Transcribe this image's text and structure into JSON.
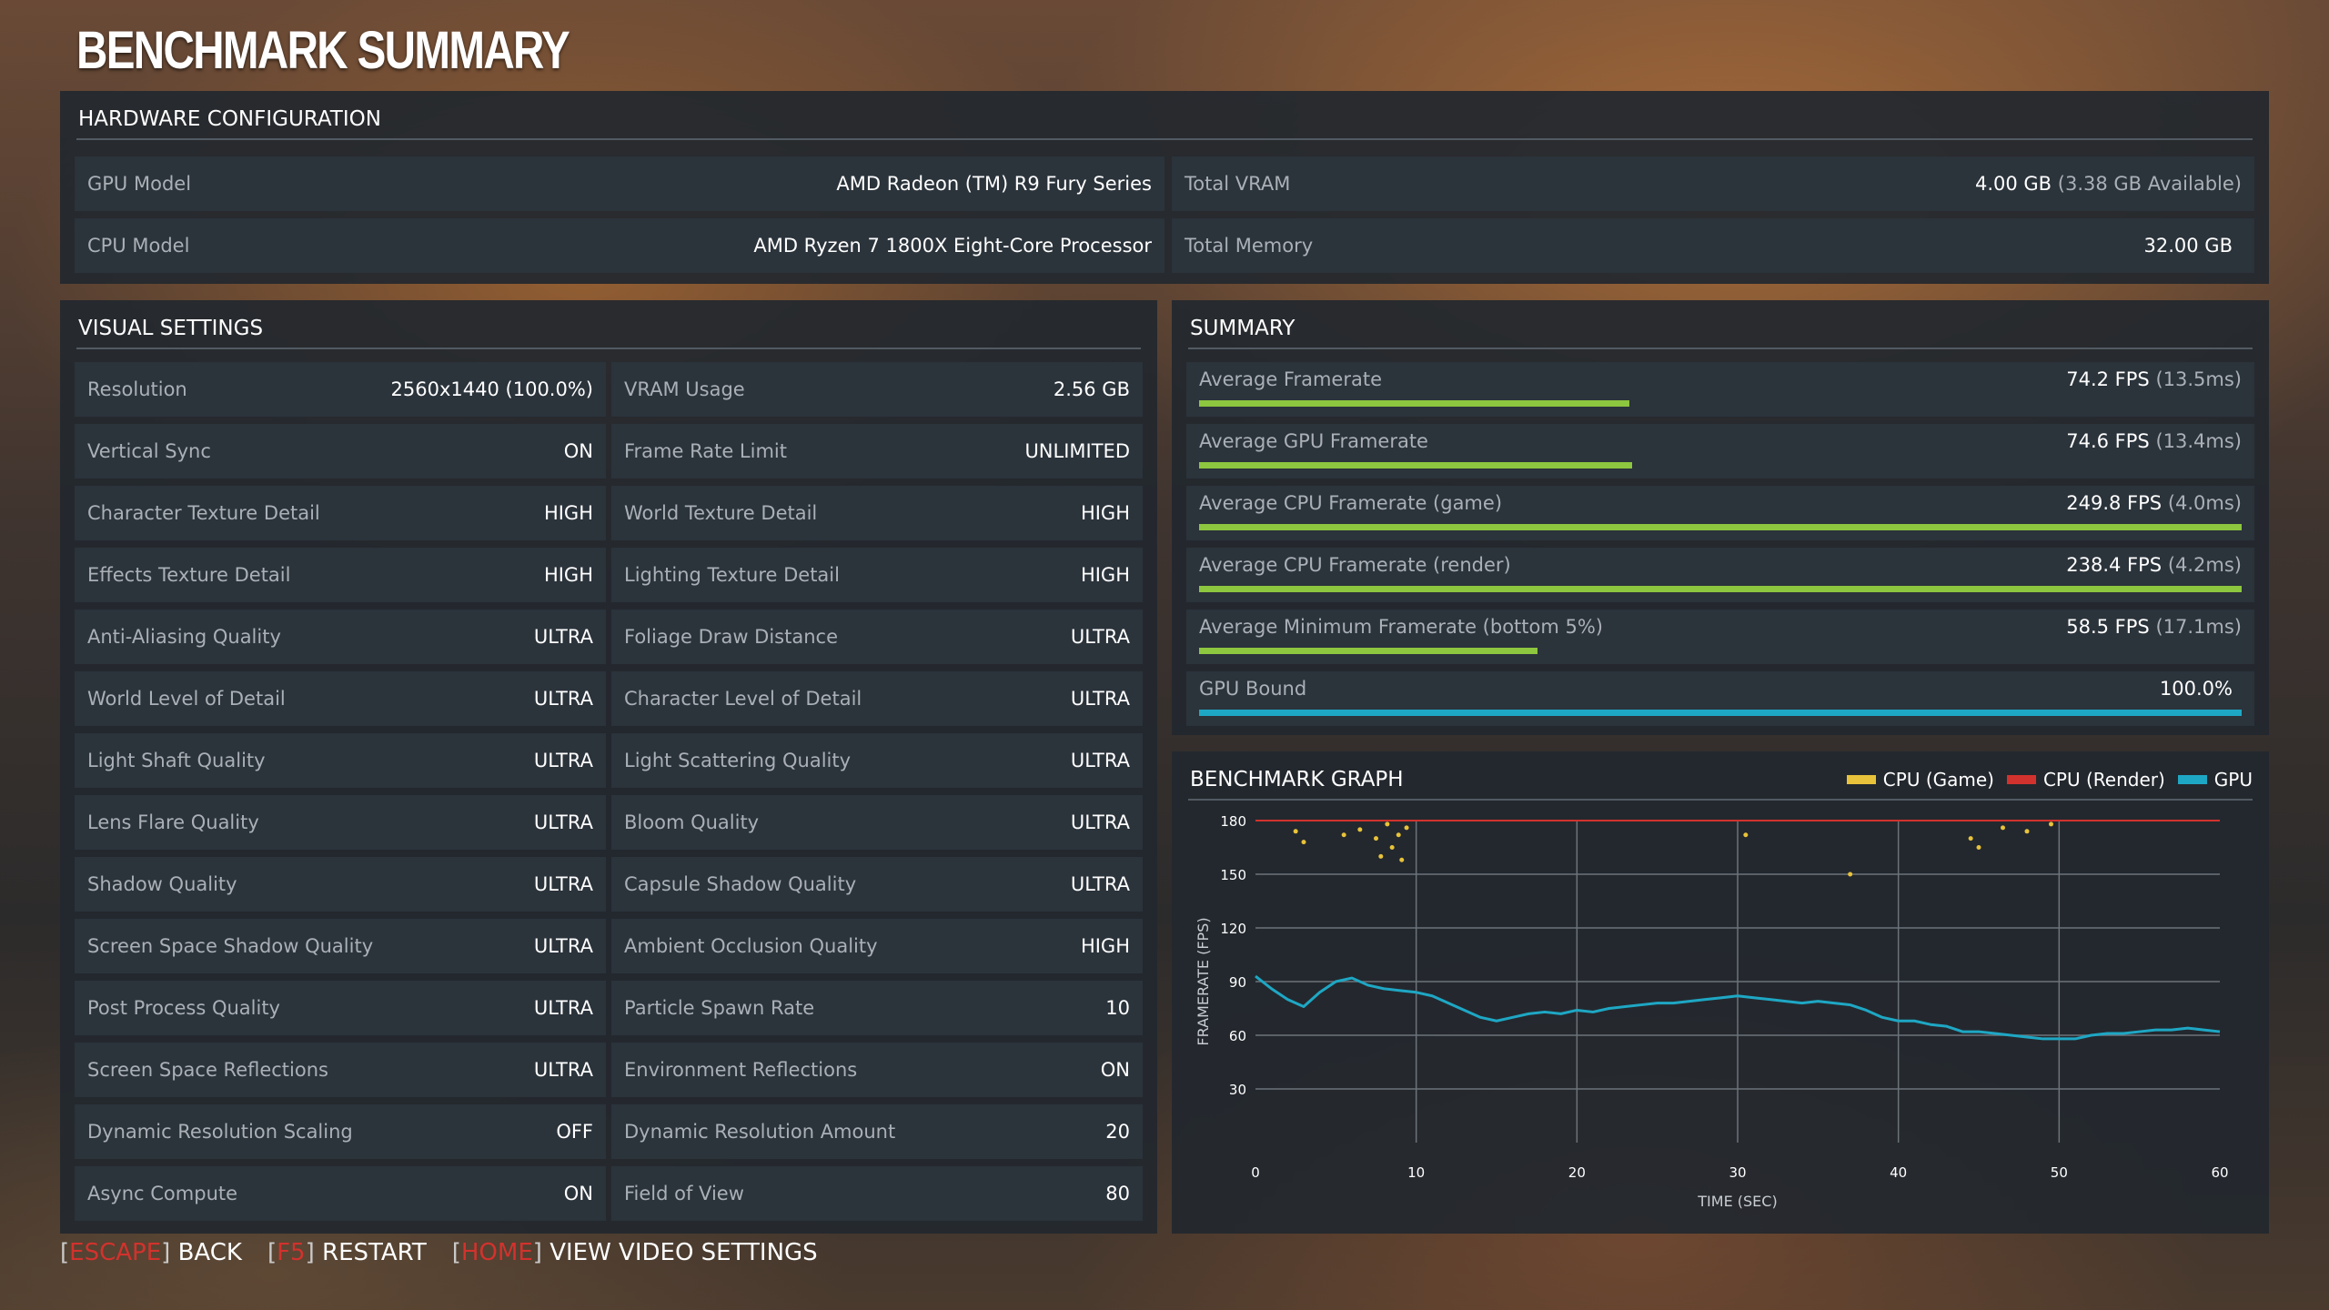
{
  "page_title": "BENCHMARK SUMMARY",
  "hardware": {
    "header": "HARDWARE CONFIGURATION",
    "gpu_label": "GPU Model",
    "gpu_value": "AMD Radeon (TM) R9 Fury Series",
    "cpu_label": "CPU Model",
    "cpu_value": "AMD Ryzen 7 1800X Eight-Core Processor",
    "vram_label": "Total VRAM",
    "vram_value": "4.00 GB",
    "vram_note": "(3.38 GB Available)",
    "memory_label": "Total Memory",
    "memory_value": "32.00 GB"
  },
  "visual_settings": {
    "header": "VISUAL SETTINGS",
    "left": [
      {
        "label": "Resolution",
        "value": "2560x1440 (100.0%)"
      },
      {
        "label": "Vertical Sync",
        "value": "ON"
      },
      {
        "label": "Character Texture Detail",
        "value": "HIGH"
      },
      {
        "label": "Effects Texture Detail",
        "value": "HIGH"
      },
      {
        "label": "Anti-Aliasing Quality",
        "value": "ULTRA"
      },
      {
        "label": "World Level of Detail",
        "value": "ULTRA"
      },
      {
        "label": "Light Shaft Quality",
        "value": "ULTRA"
      },
      {
        "label": "Lens Flare Quality",
        "value": "ULTRA"
      },
      {
        "label": "Shadow Quality",
        "value": "ULTRA"
      },
      {
        "label": "Screen Space Shadow Quality",
        "value": "ULTRA"
      },
      {
        "label": "Post Process Quality",
        "value": "ULTRA"
      },
      {
        "label": "Screen Space Reflections",
        "value": "ULTRA"
      },
      {
        "label": "Dynamic Resolution Scaling",
        "value": "OFF"
      },
      {
        "label": "Async Compute",
        "value": "ON"
      }
    ],
    "right": [
      {
        "label": "VRAM Usage",
        "value": "2.56 GB"
      },
      {
        "label": "Frame Rate Limit",
        "value": "UNLIMITED"
      },
      {
        "label": "World Texture Detail",
        "value": "HIGH"
      },
      {
        "label": "Lighting Texture Detail",
        "value": "HIGH"
      },
      {
        "label": "Foliage Draw Distance",
        "value": "ULTRA"
      },
      {
        "label": "Character Level of Detail",
        "value": "ULTRA"
      },
      {
        "label": "Light Scattering Quality",
        "value": "ULTRA"
      },
      {
        "label": "Bloom Quality",
        "value": "ULTRA"
      },
      {
        "label": "Capsule Shadow Quality",
        "value": "ULTRA"
      },
      {
        "label": "Ambient Occlusion Quality",
        "value": "HIGH"
      },
      {
        "label": "Particle Spawn Rate",
        "value": "10"
      },
      {
        "label": "Environment Reflections",
        "value": "ON"
      },
      {
        "label": "Dynamic Resolution Amount",
        "value": "20"
      },
      {
        "label": "Field of View",
        "value": "80"
      }
    ]
  },
  "summary": {
    "header": "SUMMARY",
    "stats": [
      {
        "label": "Average Framerate",
        "value": "74.2 FPS",
        "note": "(13.5ms)",
        "bar_fraction": 0.413,
        "bar_color": "#8dc63f"
      },
      {
        "label": "Average GPU Framerate",
        "value": "74.6 FPS",
        "note": "(13.4ms)",
        "bar_fraction": 0.415,
        "bar_color": "#8dc63f"
      },
      {
        "label": "Average CPU Framerate (game)",
        "value": "249.8 FPS",
        "note": "(4.0ms)",
        "bar_fraction": 1.0,
        "bar_color": "#8dc63f"
      },
      {
        "label": "Average CPU Framerate (render)",
        "value": "238.4 FPS",
        "note": "(4.2ms)",
        "bar_fraction": 1.0,
        "bar_color": "#8dc63f"
      },
      {
        "label": "Average Minimum Framerate (bottom 5%)",
        "value": "58.5 FPS",
        "note": "(17.1ms)",
        "bar_fraction": 0.325,
        "bar_color": "#8dc63f"
      },
      {
        "label": "GPU Bound",
        "value": "100.0%",
        "note": "",
        "bar_fraction": 1.0,
        "bar_color": "#1ea7c4"
      }
    ]
  },
  "graph": {
    "header": "BENCHMARK GRAPH",
    "legend": [
      {
        "label": "CPU (Game)",
        "color": "#e8c23a"
      },
      {
        "label": "CPU (Render)",
        "color": "#d2322d"
      },
      {
        "label": "GPU",
        "color": "#1ea7c4"
      }
    ]
  },
  "chart_data": {
    "type": "line",
    "xlabel": "TIME (SEC)",
    "ylabel": "FRAMERATE (FPS)",
    "xlim": [
      0,
      60
    ],
    "ylim": [
      0,
      180
    ],
    "x_ticks": [
      0,
      10,
      20,
      30,
      40,
      50,
      60
    ],
    "y_ticks": [
      30,
      60,
      90,
      120,
      150,
      180
    ],
    "grid": true,
    "series": [
      {
        "name": "GPU",
        "color": "#1ea7c4",
        "x": [
          0,
          1,
          2,
          3,
          4,
          5,
          6,
          7,
          8,
          9,
          10,
          11,
          12,
          13,
          14,
          15,
          16,
          17,
          18,
          19,
          20,
          21,
          22,
          23,
          24,
          25,
          26,
          27,
          28,
          29,
          30,
          31,
          32,
          33,
          34,
          35,
          36,
          37,
          38,
          39,
          40,
          41,
          42,
          43,
          44,
          45,
          46,
          47,
          48,
          49,
          50,
          51,
          52,
          53,
          54,
          55,
          56,
          57,
          58,
          59,
          60
        ],
        "y": [
          93,
          86,
          80,
          76,
          84,
          90,
          92,
          88,
          86,
          85,
          84,
          82,
          78,
          74,
          70,
          68,
          70,
          72,
          73,
          72,
          74,
          73,
          75,
          76,
          77,
          78,
          78,
          79,
          80,
          81,
          82,
          81,
          80,
          79,
          78,
          79,
          78,
          77,
          74,
          70,
          68,
          68,
          66,
          65,
          62,
          62,
          61,
          60,
          59,
          58,
          58,
          58,
          60,
          61,
          61,
          62,
          63,
          63,
          64,
          63,
          62
        ]
      },
      {
        "name": "CPU (Render)",
        "color": "#d2322d",
        "x": [
          0,
          10,
          20,
          30,
          40,
          50,
          60
        ],
        "y": [
          180,
          180,
          180,
          180,
          180,
          180,
          180
        ]
      },
      {
        "name": "CPU (Game)",
        "color": "#e8c23a",
        "x": [
          2.5,
          3.0,
          5.5,
          6.5,
          7.5,
          7.8,
          8.2,
          8.5,
          8.9,
          9.1,
          9.4,
          30.5,
          37,
          44.5,
          45,
          46.5,
          48,
          49.5
        ],
        "y": [
          174,
          168,
          172,
          175,
          170,
          160,
          178,
          165,
          172,
          158,
          176,
          172,
          150,
          170,
          165,
          176,
          174,
          178
        ]
      }
    ]
  },
  "footer": {
    "items": [
      {
        "key": "ESCAPE",
        "label": "BACK"
      },
      {
        "key": "F5",
        "label": "RESTART"
      },
      {
        "key": "HOME",
        "label": "VIEW VIDEO SETTINGS"
      }
    ]
  }
}
